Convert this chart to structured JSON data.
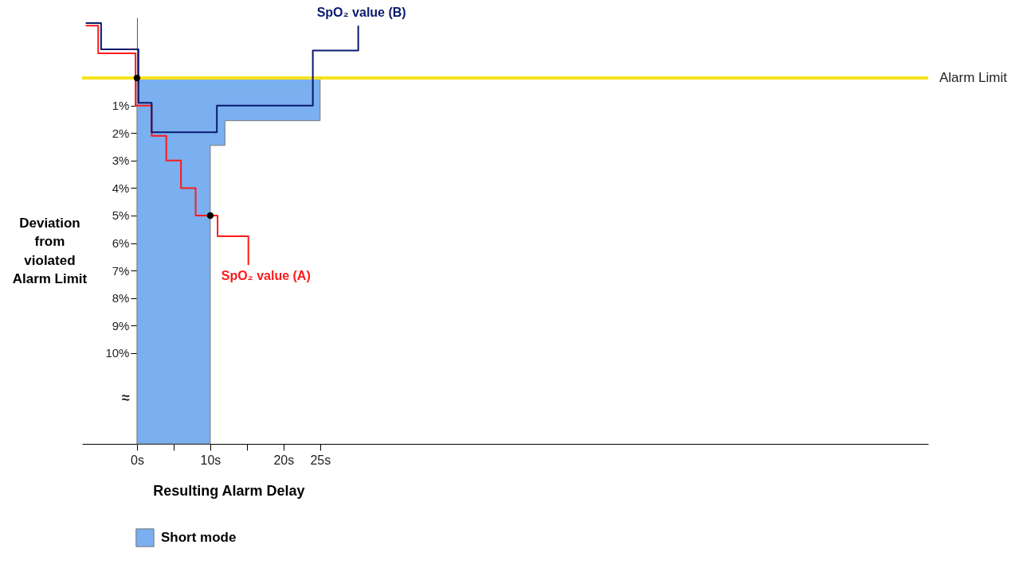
{
  "chart_data": {
    "type": "step",
    "xlabel": "Resulting Alarm Delay",
    "ylabel": "Deviation from violated Alarm Limit",
    "xlim": [
      -7.5,
      108
    ],
    "ylim": [
      13.3,
      -2.2
    ],
    "xticks": [
      {
        "value": 0,
        "label": "0s"
      },
      {
        "value": 5,
        "label": null
      },
      {
        "value": 10,
        "label": "10s"
      },
      {
        "value": 15,
        "label": null
      },
      {
        "value": 20,
        "label": "20s"
      },
      {
        "value": 25,
        "label": "25s"
      }
    ],
    "yticks": [
      {
        "value": 1,
        "label": "1%"
      },
      {
        "value": 2,
        "label": "2%"
      },
      {
        "value": 3,
        "label": "3%"
      },
      {
        "value": 4,
        "label": "4%"
      },
      {
        "value": 5,
        "label": "5%"
      },
      {
        "value": 6,
        "label": "6%"
      },
      {
        "value": 7,
        "label": "7%"
      },
      {
        "value": 8,
        "label": "8%"
      },
      {
        "value": 9,
        "label": "9%"
      },
      {
        "value": 10,
        "label": "10%"
      }
    ],
    "series": [
      {
        "name": "Short mode",
        "type": "area",
        "color": "#7aaff0",
        "x": [
          0,
          10,
          12,
          25
        ],
        "values": [
          13.3,
          2.45,
          1.55,
          1.55
        ]
      },
      {
        "name": "SpO₂ value (A)",
        "color": "#ff1a1a",
        "x": [
          -7,
          -5.3,
          -0.2,
          2,
          4,
          6,
          8,
          11,
          15.2
        ],
        "values": [
          -1.9,
          -0.9,
          1.0,
          2.1,
          3.0,
          4.0,
          5.0,
          5.75,
          6.8
        ]
      },
      {
        "name": "SpO₂ value (B)",
        "color": "#0a1a6e",
        "x": [
          -7,
          -4.9,
          0.2,
          2,
          10.9,
          24,
          30.2
        ],
        "values": [
          -2.0,
          -1.04,
          0.9,
          1.97,
          1.0,
          -1.0,
          -1.9
        ]
      },
      {
        "type": "scatter",
        "color": "#000000",
        "x": [
          0,
          10
        ],
        "values": [
          0,
          5
        ]
      }
    ],
    "ref_lines": [
      {
        "axis": "y",
        "value": 0,
        "label": "Alarm Limit",
        "color": "#f7e21c"
      }
    ],
    "annotations": [
      "≈"
    ],
    "legend": "bottom left",
    "grid": false,
    "line_style": "solid"
  }
}
